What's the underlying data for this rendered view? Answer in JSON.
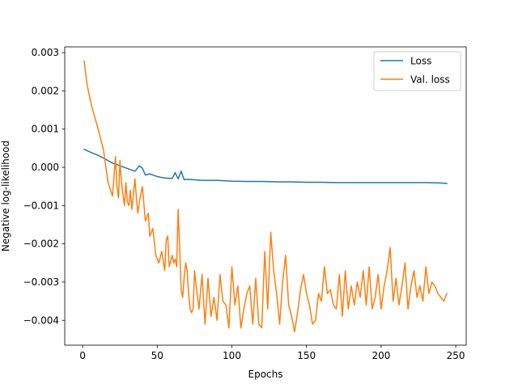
{
  "chart_data": {
    "type": "line",
    "title": "",
    "xlabel": "Epochs",
    "ylabel": "Negative log-likelihood",
    "xlim": [
      -12,
      257
    ],
    "ylim": [
      -0.00465,
      0.00315
    ],
    "xticks": [
      0,
      50,
      100,
      150,
      200,
      250
    ],
    "yticks": [
      0.003,
      0.002,
      0.001,
      0.0,
      -0.001,
      -0.002,
      -0.003,
      -0.004
    ],
    "ytick_labels": [
      "0.003",
      "0.002",
      "0.001",
      "0.000",
      "−0.001",
      "−0.002",
      "−0.003",
      "−0.004"
    ],
    "grid": false,
    "legend_position": "top-right",
    "series": [
      {
        "name": "Loss",
        "color": "#1f77b4",
        "x": [
          1,
          5,
          10,
          15,
          20,
          25,
          30,
          35,
          38,
          40,
          42,
          45,
          50,
          55,
          60,
          62,
          64,
          66,
          68,
          70,
          80,
          90,
          100,
          110,
          120,
          130,
          140,
          150,
          160,
          170,
          180,
          190,
          200,
          210,
          220,
          230,
          240,
          244
        ],
        "values": [
          0.00047,
          0.0004,
          0.00032,
          0.00022,
          0.00011,
          4e-05,
          -3e-05,
          -0.0001,
          4e-05,
          -2e-05,
          -0.0002,
          -0.00017,
          -0.00024,
          -0.00028,
          -0.00029,
          -0.00014,
          -0.0003,
          -0.0001,
          -0.00032,
          -0.00031,
          -0.00034,
          -0.00034,
          -0.00036,
          -0.00037,
          -0.00037,
          -0.00038,
          -0.00038,
          -0.00039,
          -0.00039,
          -0.0004,
          -0.0004,
          -0.0004,
          -0.0004,
          -0.0004,
          -0.0004,
          -0.0004,
          -0.00041,
          -0.00042
        ]
      },
      {
        "name": "Val. loss",
        "color": "#ff7f0e",
        "x": [
          1,
          3,
          6,
          10,
          14,
          17,
          20,
          22,
          23,
          24,
          25,
          26,
          27,
          28,
          29,
          30,
          31,
          32,
          33,
          34,
          35,
          36,
          37,
          38,
          40,
          42,
          44,
          45,
          47,
          49,
          51,
          53,
          55,
          56,
          57,
          58,
          60,
          61,
          62,
          63,
          64,
          65,
          66,
          67,
          68,
          69,
          70,
          71,
          72,
          73,
          74,
          75,
          76,
          78,
          80,
          82,
          84,
          86,
          88,
          90,
          92,
          94,
          96,
          98,
          100,
          102,
          104,
          106,
          108,
          110,
          112,
          114,
          116,
          118,
          120,
          122,
          124,
          126,
          128,
          130,
          132,
          134,
          136,
          138,
          140,
          142,
          144,
          146,
          148,
          150,
          152,
          154,
          156,
          158,
          160,
          162,
          164,
          166,
          168,
          170,
          172,
          174,
          176,
          178,
          180,
          182,
          184,
          186,
          188,
          190,
          192,
          194,
          196,
          198,
          200,
          202,
          204,
          206,
          208,
          210,
          212,
          214,
          216,
          218,
          220,
          222,
          224,
          226,
          228,
          230,
          232,
          234,
          236,
          238,
          240,
          242,
          244
        ],
        "values": [
          0.00278,
          0.00215,
          0.0016,
          0.00105,
          0.00045,
          -0.0004,
          -0.00075,
          0.00028,
          -0.0005,
          -0.0008,
          0.00018,
          -0.0004,
          -0.0007,
          -0.001,
          -0.0004,
          -0.0009,
          -0.001,
          -0.0006,
          -0.0011,
          -0.0007,
          -0.0003,
          -0.0008,
          -0.0012,
          -0.0009,
          -0.0005,
          -0.0014,
          -0.0012,
          -0.0018,
          -0.0016,
          -0.0023,
          -0.0025,
          -0.0022,
          -0.0027,
          -0.0019,
          -0.0018,
          -0.0026,
          -0.0023,
          -0.0025,
          -0.0024,
          -0.0026,
          -0.0011,
          -0.0021,
          -0.0032,
          -0.0034,
          -0.0029,
          -0.0025,
          -0.0027,
          -0.0033,
          -0.0037,
          -0.0038,
          -0.0037,
          -0.0027,
          -0.0031,
          -0.0037,
          -0.0028,
          -0.0041,
          -0.0029,
          -0.0039,
          -0.0034,
          -0.004,
          -0.0028,
          -0.0035,
          -0.0036,
          -0.0042,
          -0.0026,
          -0.0036,
          -0.0031,
          -0.0042,
          -0.0037,
          -0.0033,
          -0.0031,
          -0.0041,
          -0.0029,
          -0.0041,
          -0.0042,
          -0.0022,
          -0.0037,
          -0.0017,
          -0.0027,
          -0.0033,
          -0.0041,
          -0.003,
          -0.0023,
          -0.0036,
          -0.0039,
          -0.0043,
          -0.0038,
          -0.0032,
          -0.0028,
          -0.0033,
          -0.0036,
          -0.0041,
          -0.004,
          -0.0033,
          -0.0035,
          -0.0026,
          -0.0033,
          -0.0032,
          -0.0036,
          -0.0037,
          -0.0028,
          -0.0039,
          -0.0027,
          -0.0037,
          -0.0031,
          -0.0036,
          -0.003,
          -0.0034,
          -0.0027,
          -0.0036,
          -0.0026,
          -0.0037,
          -0.0034,
          -0.0028,
          -0.0037,
          -0.0031,
          -0.0027,
          -0.0021,
          -0.0035,
          -0.0029,
          -0.0036,
          -0.0031,
          -0.0025,
          -0.0037,
          -0.0031,
          -0.0027,
          -0.0034,
          -0.0031,
          -0.0035,
          -0.0026,
          -0.0033,
          -0.003,
          -0.0031,
          -0.0033,
          -0.0034,
          -0.0035,
          -0.0033
        ]
      }
    ]
  },
  "colors": {
    "loss": "#1f77b4",
    "val_loss": "#ff7f0e",
    "axes": "#000000",
    "legend_border": "#cccccc"
  }
}
